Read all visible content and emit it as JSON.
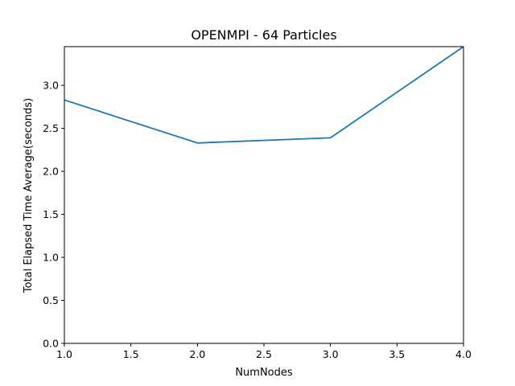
{
  "chart_data": {
    "type": "line",
    "title": "OPENMPI - 64 Particles",
    "xlabel": "NumNodes",
    "ylabel": "Total Elapsed Time Average(seconds)",
    "xlim": [
      1.0,
      4.0
    ],
    "ylim": [
      0.0,
      3.45
    ],
    "xticks": [
      "1.0",
      "1.5",
      "2.0",
      "2.5",
      "3.0",
      "3.5",
      "4.0"
    ],
    "yticks": [
      "0.0",
      "0.5",
      "1.0",
      "1.5",
      "2.0",
      "2.5",
      "3.0"
    ],
    "grid": false,
    "series": [
      {
        "color": "#1f77b4",
        "x": [
          1,
          2,
          3,
          4
        ],
        "y": [
          2.83,
          2.33,
          2.39,
          3.45
        ]
      }
    ]
  }
}
